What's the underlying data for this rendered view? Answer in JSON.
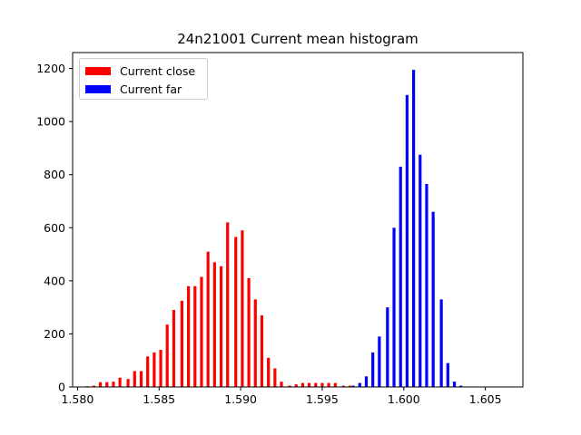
{
  "chart_data": {
    "type": "bar",
    "title": "24n21001 Current mean histogram",
    "xlabel": "",
    "ylabel": "",
    "xlim": [
      1.5797,
      1.6073
    ],
    "ylim": [
      0,
      1260
    ],
    "xticks": [
      1.58,
      1.585,
      1.59,
      1.595,
      1.6,
      1.605
    ],
    "xtick_labels": [
      "1.580",
      "1.585",
      "1.590",
      "1.595",
      "1.600",
      "1.605"
    ],
    "yticks": [
      0,
      200,
      400,
      600,
      800,
      1000,
      1200
    ],
    "ytick_labels": [
      "0",
      "200",
      "400",
      "600",
      "800",
      "1000",
      "1200"
    ],
    "legend_position": "upper-left",
    "series": [
      {
        "name": "Current close",
        "color": "#ff0000",
        "x": [
          1.5806,
          1.581,
          1.5814,
          1.5818,
          1.5822,
          1.5826,
          1.5831,
          1.5835,
          1.5839,
          1.5843,
          1.5847,
          1.5851,
          1.5855,
          1.5859,
          1.5864,
          1.5868,
          1.5872,
          1.5876,
          1.588,
          1.5884,
          1.5888,
          1.5892,
          1.5897,
          1.5901,
          1.5905,
          1.5909,
          1.5913,
          1.5917,
          1.5921,
          1.5925,
          1.593,
          1.5934,
          1.5938,
          1.5942,
          1.5946,
          1.595,
          1.5954,
          1.5958,
          1.5963,
          1.5967,
          1.5971,
          1.5975,
          1.5979,
          1.5983,
          1.5987,
          1.5991,
          1.5996,
          1.6,
          1.6004,
          1.6008
        ],
        "values": [
          3,
          5,
          18,
          18,
          20,
          35,
          30,
          60,
          60,
          115,
          130,
          140,
          235,
          290,
          325,
          380,
          380,
          415,
          510,
          470,
          455,
          620,
          565,
          590,
          410,
          330,
          270,
          110,
          70,
          20,
          5,
          10,
          15,
          15,
          15,
          15,
          15,
          15,
          5,
          5,
          0,
          0,
          0,
          0,
          0,
          0,
          0,
          0,
          0,
          0
        ]
      },
      {
        "name": "Current far",
        "color": "#0000ff",
        "x": [
          1.5969,
          1.5973,
          1.5977,
          1.5981,
          1.5985,
          1.599,
          1.5994,
          1.5998,
          1.6002,
          1.6006,
          1.601,
          1.6014,
          1.6018,
          1.6023,
          1.6027,
          1.6031,
          1.6035,
          1.6039,
          1.6043
        ],
        "values": [
          5,
          15,
          40,
          130,
          190,
          300,
          600,
          830,
          1100,
          1195,
          875,
          765,
          660,
          330,
          90,
          20,
          5,
          0,
          0
        ]
      }
    ]
  }
}
